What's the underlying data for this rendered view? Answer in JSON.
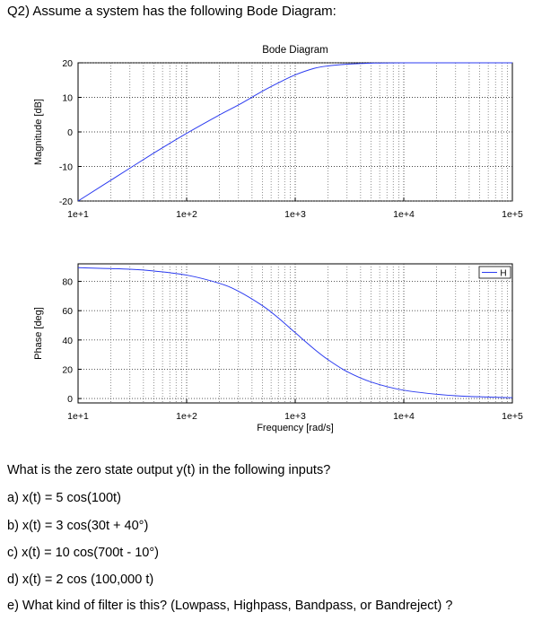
{
  "question_header": "Q2) Assume a system has the following Bode Diagram:",
  "chart_data": [
    {
      "type": "line",
      "title": "Bode Diagram",
      "ylabel": "Magnitude [dB]",
      "xlabel": "",
      "xscale": "log",
      "xlim": [
        10,
        100000
      ],
      "ylim": [
        -20,
        20
      ],
      "grid": true,
      "xticks": [
        "1e+1",
        "1e+2",
        "1e+3",
        "1e+4",
        "1e+5"
      ],
      "yticks": [
        "20",
        "10",
        "0",
        "-10",
        "-20"
      ],
      "series": [
        {
          "color": "#2b3bf0",
          "x": [
            10,
            20,
            50,
            100,
            200,
            300,
            500,
            700,
            1000,
            1500,
            2000,
            3000,
            5000,
            10000,
            100000
          ],
          "y": [
            -20,
            -14,
            -6.1,
            -0.4,
            4.9,
            7.8,
            11.8,
            14.2,
            16.5,
            18.4,
            19.1,
            19.6,
            19.9,
            20,
            20
          ]
        }
      ]
    },
    {
      "type": "line",
      "title": "",
      "ylabel": "Phase [deg]",
      "xlabel": "Frequency [rad/s]",
      "xscale": "log",
      "xlim": [
        10,
        100000
      ],
      "ylim": [
        -3,
        92
      ],
      "grid": true,
      "legend": "top-right",
      "legend_label": "H",
      "xticks": [
        "1e+1",
        "1e+2",
        "1e+3",
        "1e+4",
        "1e+5"
      ],
      "yticks": [
        "80",
        "60",
        "40",
        "20",
        "0"
      ],
      "series": [
        {
          "color": "#2b3bf0",
          "x": [
            10,
            30,
            50,
            100,
            200,
            300,
            500,
            700,
            1000,
            1500,
            2000,
            3000,
            5000,
            10000,
            30000,
            100000
          ],
          "y": [
            89.4,
            88.3,
            87.1,
            84.3,
            78.7,
            73.3,
            63.4,
            55.0,
            45.0,
            33.7,
            26.6,
            18.4,
            11.3,
            5.7,
            1.9,
            0.6
          ]
        }
      ]
    }
  ],
  "questions": {
    "intro": "What is the zero state output y(t) in the following inputs?",
    "a": "a) x(t) = 5 cos(100t)",
    "b": "b) x(t) = 3 cos(30t + 40°)",
    "c": "c) x(t) = 10 cos(700t -  10°)",
    "d": "d) x(t) = 2 cos (100,000 t)",
    "e": "e) What kind of filter is this? (Lowpass, Highpass, Bandpass, or Bandreject) ?"
  }
}
